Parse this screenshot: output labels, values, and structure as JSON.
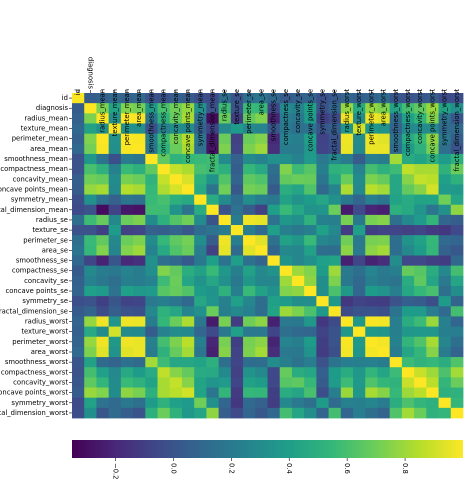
{
  "chart_data": {
    "type": "heatmap",
    "title": "",
    "xlabel": "",
    "ylabel": "",
    "labels": [
      "id",
      "diagnosis",
      "radius_mean",
      "texture_mean",
      "perimeter_mean",
      "area_mean",
      "smoothness_mean",
      "compactness_mean",
      "concavity_mean",
      "concave points_mean",
      "symmetry_mean",
      "fractal_dimension_mean",
      "radius_se",
      "texture_se",
      "perimeter_se",
      "area_se",
      "smoothness_se",
      "compactness_se",
      "concavity_se",
      "concave points_se",
      "symmetry_se",
      "fractal_dimension_se",
      "radius_worst",
      "texture_worst",
      "perimeter_worst",
      "area_worst",
      "smoothness_worst",
      "compactness_worst",
      "concavity_worst",
      "concave points_worst",
      "symmetry_worst",
      "fractal_dimension_worst"
    ],
    "x_tick_labels": [
      "id",
      "diagnosis",
      "radius_mean",
      "texture_mean",
      "perimeter_mean",
      "area_mean",
      "smoothness_mean",
      "compactness_mean",
      "concavity_mean",
      "concave points_mean",
      "symmetry_mean",
      "fractal_dimension_mean",
      "radius_se",
      "texture_se",
      "perimeter_se",
      "area_se",
      "smoothness_se",
      "compactness_se",
      "concavity_se",
      "concave points_se",
      "symmetry_se",
      "fractal_dimension_se",
      "radius_worst",
      "texture_worst",
      "perimeter_worst",
      "area_worst",
      "smoothness_worst",
      "compactness_worst",
      "concavity_worst",
      "concave points_worst",
      "symmetry_worst",
      "fractal_dimension_worst"
    ],
    "x_tick_display": [
      "id",
      "diagnosis",
      "radius_mean",
      "texture_mean",
      "perimeter_mean",
      "area_mean",
      "smoothness_mean",
      "compactness_mean",
      "concavity_mean",
      "concave points_mean",
      "symmetry_mean",
      "fractal_dimension_mean",
      "radius_se",
      "texture_se",
      "perimeter_se",
      "area_se",
      "smoothness_se",
      "compactness_se",
      "concavity_se",
      "concave points_se",
      "symmetry_se",
      "fractal_dimension_se",
      "radius_worst",
      "texture_worst",
      "perimeter_worst",
      "area_worst",
      "smoothness_worst",
      "compactness_worst",
      "concavity_worst",
      "concave points_worst",
      "symmetry_worst",
      "fractal_dimension_worst"
    ],
    "y_tick_labels": [
      "id",
      "diagnosis",
      "radius_mean",
      "texture_mean",
      "perimeter_mean",
      "area_mean",
      "smoothness_mean",
      "compactness_mean",
      "concavity_mean",
      "concave points_mean",
      "symmetry_mean",
      "fractal_dimension_mean",
      "radius_se",
      "texture_se",
      "perimeter_se",
      "area_se",
      "smoothness_se",
      "compactness_se",
      "concavity_se",
      "concave points_se",
      "symmetry_se",
      "fractal_dimension_se",
      "radius_worst",
      "texture_worst",
      "perimeter_worst",
      "area_worst",
      "smoothness_worst",
      "compactness_worst",
      "concavity_worst",
      "concave points_worst",
      "symmetry_worst",
      "fractal_dimension_worst"
    ],
    "y_tick_display": [
      "id",
      "diagnosis",
      "radius_mean",
      "texture_mean",
      "perimeter_mean",
      "area_mean",
      "smoothness_mean",
      "compactness_mean",
      "concavity_mean",
      "concave points_mean",
      "symmetry_mean",
      "fractal_dimension_mean",
      "radius_se",
      "texture_se",
      "perimeter_se",
      "area_se",
      "smoothness_se",
      "compactness_se",
      "concavity_se",
      "concave points_se",
      "symmetry_se",
      "fractal_dimension_se",
      "radius_worst",
      "texture_worst",
      "perimeter_worst",
      "area_worst",
      "smoothness_worst",
      "compactness_worst",
      "concavity_worst",
      "concave points_worst",
      "symmetry_worst",
      "fractal_dimension_worst"
    ],
    "colormap": "viridis",
    "color_range": [
      -0.35,
      1.0
    ],
    "colorbar": {
      "orientation": "horizontal",
      "ticks": [
        -0.2,
        0.0,
        0.2,
        0.4,
        0.6,
        0.8
      ],
      "tick_labels": [
        "−0.2",
        "0.0",
        "0.2",
        "0.4",
        "0.6",
        "0.8"
      ]
    },
    "top_labels_rotated_below": [
      "diagnosis"
    ],
    "values": [
      [
        1.0,
        0.04,
        0.07,
        0.1,
        0.07,
        0.1,
        -0.01,
        0.0,
        0.05,
        0.04,
        -0.02,
        -0.05,
        0.14,
        -0.01,
        0.14,
        0.18,
        0.1,
        0.03,
        0.06,
        0.08,
        -0.02,
        0.03,
        0.08,
        0.06,
        0.08,
        0.11,
        0.01,
        0.0,
        0.02,
        0.04,
        -0.04,
        -0.03
      ],
      [
        0.04,
        1.0,
        0.73,
        0.42,
        0.74,
        0.71,
        0.36,
        0.6,
        0.7,
        0.78,
        0.33,
        -0.01,
        0.57,
        -0.01,
        0.56,
        0.55,
        -0.07,
        0.29,
        0.25,
        0.41,
        -0.01,
        0.08,
        0.78,
        0.46,
        0.78,
        0.73,
        0.42,
        0.59,
        0.66,
        0.79,
        0.42,
        0.32
      ],
      [
        0.07,
        0.73,
        1.0,
        0.32,
        1.0,
        0.99,
        0.17,
        0.51,
        0.68,
        0.82,
        0.15,
        -0.31,
        0.68,
        -0.1,
        0.67,
        0.74,
        -0.22,
        0.21,
        0.19,
        0.38,
        -0.1,
        -0.04,
        0.97,
        0.3,
        0.97,
        0.94,
        0.12,
        0.41,
        0.53,
        0.74,
        0.16,
        0.01
      ],
      [
        0.1,
        0.42,
        0.32,
        1.0,
        0.33,
        0.32,
        -0.02,
        0.24,
        0.3,
        0.29,
        0.07,
        -0.08,
        0.28,
        0.39,
        0.28,
        0.26,
        0.01,
        0.19,
        0.14,
        0.16,
        0.01,
        0.05,
        0.35,
        0.91,
        0.36,
        0.34,
        0.08,
        0.28,
        0.3,
        0.3,
        0.11,
        0.12
      ],
      [
        0.07,
        0.74,
        1.0,
        0.33,
        1.0,
        0.99,
        0.21,
        0.56,
        0.72,
        0.85,
        0.18,
        -0.26,
        0.69,
        -0.09,
        0.69,
        0.74,
        -0.2,
        0.25,
        0.23,
        0.41,
        -0.08,
        -0.01,
        0.97,
        0.3,
        0.97,
        0.94,
        0.15,
        0.46,
        0.56,
        0.77,
        0.19,
        0.05
      ],
      [
        0.1,
        0.71,
        0.99,
        0.32,
        0.99,
        1.0,
        0.18,
        0.5,
        0.69,
        0.82,
        0.15,
        -0.28,
        0.73,
        -0.07,
        0.73,
        0.8,
        -0.17,
        0.21,
        0.21,
        0.37,
        -0.07,
        -0.02,
        0.96,
        0.29,
        0.96,
        0.96,
        0.12,
        0.39,
        0.51,
        0.72,
        0.14,
        0.0
      ],
      [
        -0.01,
        0.36,
        0.17,
        -0.02,
        0.21,
        0.18,
        1.0,
        0.66,
        0.52,
        0.55,
        0.56,
        0.58,
        0.3,
        0.07,
        0.3,
        0.25,
        0.33,
        0.32,
        0.25,
        0.38,
        0.2,
        0.28,
        0.21,
        0.04,
        0.24,
        0.21,
        0.81,
        0.47,
        0.43,
        0.5,
        0.39,
        0.5
      ],
      [
        0.0,
        0.6,
        0.51,
        0.24,
        0.56,
        0.5,
        0.66,
        1.0,
        0.88,
        0.83,
        0.6,
        0.57,
        0.5,
        0.05,
        0.55,
        0.46,
        0.14,
        0.74,
        0.57,
        0.64,
        0.23,
        0.51,
        0.54,
        0.25,
        0.59,
        0.51,
        0.57,
        0.87,
        0.82,
        0.82,
        0.51,
        0.69
      ],
      [
        0.05,
        0.7,
        0.68,
        0.3,
        0.72,
        0.69,
        0.52,
        0.88,
        1.0,
        0.92,
        0.5,
        0.34,
        0.63,
        0.08,
        0.66,
        0.62,
        0.1,
        0.67,
        0.69,
        0.68,
        0.18,
        0.45,
        0.69,
        0.3,
        0.73,
        0.68,
        0.45,
        0.75,
        0.88,
        0.86,
        0.41,
        0.51
      ],
      [
        0.04,
        0.78,
        0.82,
        0.29,
        0.85,
        0.82,
        0.55,
        0.83,
        0.92,
        1.0,
        0.46,
        0.17,
        0.7,
        0.02,
        0.71,
        0.69,
        0.03,
        0.49,
        0.44,
        0.62,
        0.1,
        0.26,
        0.83,
        0.29,
        0.86,
        0.81,
        0.45,
        0.67,
        0.75,
        0.91,
        0.38,
        0.37
      ],
      [
        -0.02,
        0.33,
        0.15,
        0.07,
        0.18,
        0.15,
        0.56,
        0.6,
        0.5,
        0.46,
        1.0,
        0.48,
        0.3,
        0.13,
        0.31,
        0.22,
        0.19,
        0.42,
        0.34,
        0.39,
        0.45,
        0.33,
        0.19,
        0.09,
        0.22,
        0.18,
        0.43,
        0.47,
        0.43,
        0.43,
        0.7,
        0.44
      ],
      [
        -0.05,
        -0.01,
        -0.31,
        -0.08,
        -0.26,
        -0.28,
        0.58,
        0.57,
        0.34,
        0.17,
        0.48,
        1.0,
        0.0,
        0.16,
        0.04,
        -0.09,
        0.4,
        0.56,
        0.45,
        0.34,
        0.35,
        0.69,
        -0.25,
        -0.05,
        -0.21,
        -0.23,
        0.5,
        0.46,
        0.35,
        0.18,
        0.33,
        0.77
      ],
      [
        0.14,
        0.57,
        0.68,
        0.28,
        0.69,
        0.73,
        0.3,
        0.5,
        0.63,
        0.7,
        0.3,
        0.0,
        1.0,
        0.21,
        0.97,
        0.95,
        0.16,
        0.36,
        0.33,
        0.51,
        0.24,
        0.23,
        0.72,
        0.19,
        0.72,
        0.75,
        0.14,
        0.29,
        0.38,
        0.53,
        0.09,
        0.05
      ],
      [
        -0.01,
        -0.01,
        -0.1,
        0.39,
        -0.09,
        -0.07,
        0.07,
        0.05,
        0.08,
        0.02,
        0.13,
        0.16,
        0.21,
        1.0,
        0.22,
        0.11,
        0.4,
        0.23,
        0.19,
        0.23,
        0.41,
        0.28,
        -0.11,
        0.41,
        -0.1,
        -0.08,
        -0.07,
        -0.09,
        -0.07,
        -0.12,
        -0.13,
        -0.05
      ],
      [
        0.14,
        0.56,
        0.67,
        0.28,
        0.69,
        0.73,
        0.3,
        0.55,
        0.66,
        0.71,
        0.31,
        0.04,
        0.97,
        0.22,
        1.0,
        0.94,
        0.15,
        0.42,
        0.36,
        0.56,
        0.27,
        0.24,
        0.7,
        0.2,
        0.72,
        0.73,
        0.13,
        0.34,
        0.42,
        0.55,
        0.11,
        0.09
      ],
      [
        0.18,
        0.55,
        0.74,
        0.26,
        0.74,
        0.8,
        0.25,
        0.46,
        0.62,
        0.69,
        0.22,
        -0.09,
        0.95,
        0.11,
        0.94,
        1.0,
        0.08,
        0.28,
        0.27,
        0.42,
        0.13,
        0.13,
        0.76,
        0.2,
        0.76,
        0.81,
        0.13,
        0.28,
        0.39,
        0.54,
        0.07,
        0.02
      ],
      [
        0.1,
        -0.07,
        -0.22,
        0.01,
        -0.2,
        -0.17,
        0.33,
        0.14,
        0.1,
        0.03,
        0.19,
        0.4,
        0.16,
        0.4,
        0.15,
        0.08,
        1.0,
        0.34,
        0.27,
        0.33,
        0.41,
        0.43,
        -0.23,
        -0.07,
        -0.22,
        -0.18,
        0.31,
        -0.06,
        -0.06,
        -0.1,
        -0.11,
        0.1
      ],
      [
        0.03,
        0.29,
        0.21,
        0.19,
        0.25,
        0.21,
        0.32,
        0.74,
        0.67,
        0.49,
        0.42,
        0.56,
        0.36,
        0.23,
        0.42,
        0.28,
        0.34,
        1.0,
        0.8,
        0.74,
        0.39,
        0.8,
        0.2,
        0.14,
        0.26,
        0.2,
        0.23,
        0.68,
        0.64,
        0.48,
        0.28,
        0.59
      ],
      [
        0.06,
        0.25,
        0.19,
        0.14,
        0.23,
        0.21,
        0.25,
        0.57,
        0.69,
        0.44,
        0.34,
        0.45,
        0.33,
        0.19,
        0.36,
        0.27,
        0.27,
        0.8,
        1.0,
        0.77,
        0.31,
        0.73,
        0.19,
        0.1,
        0.23,
        0.19,
        0.17,
        0.48,
        0.66,
        0.44,
        0.2,
        0.44
      ],
      [
        0.08,
        0.41,
        0.38,
        0.16,
        0.41,
        0.37,
        0.38,
        0.64,
        0.68,
        0.62,
        0.39,
        0.34,
        0.51,
        0.23,
        0.56,
        0.42,
        0.33,
        0.74,
        0.77,
        1.0,
        0.31,
        0.61,
        0.36,
        0.09,
        0.39,
        0.34,
        0.22,
        0.45,
        0.55,
        0.6,
        0.14,
        0.31
      ],
      [
        -0.02,
        -0.01,
        -0.1,
        0.01,
        -0.08,
        -0.07,
        0.2,
        0.23,
        0.18,
        0.1,
        0.45,
        0.35,
        0.24,
        0.41,
        0.27,
        0.13,
        0.41,
        0.39,
        0.31,
        0.31,
        1.0,
        0.37,
        -0.13,
        -0.08,
        -0.1,
        -0.11,
        -0.01,
        0.06,
        0.04,
        -0.03,
        0.39,
        0.08
      ],
      [
        0.03,
        0.08,
        -0.04,
        0.05,
        -0.01,
        -0.02,
        0.28,
        0.51,
        0.45,
        0.26,
        0.33,
        0.69,
        0.23,
        0.28,
        0.24,
        0.13,
        0.43,
        0.8,
        0.73,
        0.61,
        0.37,
        1.0,
        -0.04,
        -0.0,
        -0.0,
        -0.02,
        0.17,
        0.39,
        0.38,
        0.22,
        0.11,
        0.59
      ],
      [
        0.08,
        0.78,
        0.97,
        0.35,
        0.97,
        0.96,
        0.21,
        0.54,
        0.69,
        0.83,
        0.19,
        -0.25,
        0.72,
        -0.11,
        0.7,
        0.76,
        -0.23,
        0.2,
        0.19,
        0.36,
        -0.13,
        -0.04,
        1.0,
        0.36,
        0.99,
        0.98,
        0.22,
        0.48,
        0.57,
        0.79,
        0.24,
        0.09
      ],
      [
        0.06,
        0.46,
        0.3,
        0.91,
        0.3,
        0.29,
        0.04,
        0.25,
        0.3,
        0.29,
        0.09,
        -0.05,
        0.19,
        0.41,
        0.2,
        0.2,
        -0.07,
        0.14,
        0.1,
        0.09,
        -0.08,
        -0.0,
        0.36,
        1.0,
        0.37,
        0.35,
        0.23,
        0.36,
        0.37,
        0.36,
        0.23,
        0.22
      ],
      [
        0.08,
        0.78,
        0.97,
        0.36,
        0.97,
        0.96,
        0.24,
        0.59,
        0.73,
        0.86,
        0.22,
        -0.21,
        0.72,
        -0.1,
        0.72,
        0.76,
        -0.22,
        0.26,
        0.23,
        0.39,
        -0.1,
        -0.0,
        0.99,
        0.37,
        1.0,
        0.98,
        0.24,
        0.53,
        0.62,
        0.82,
        0.27,
        0.14
      ],
      [
        0.11,
        0.73,
        0.94,
        0.34,
        0.94,
        0.96,
        0.21,
        0.51,
        0.68,
        0.81,
        0.18,
        -0.23,
        0.75,
        -0.08,
        0.73,
        0.81,
        -0.18,
        0.2,
        0.19,
        0.34,
        -0.11,
        -0.02,
        0.98,
        0.35,
        0.98,
        1.0,
        0.21,
        0.44,
        0.54,
        0.75,
        0.21,
        0.08
      ],
      [
        0.01,
        0.42,
        0.12,
        0.08,
        0.15,
        0.12,
        0.81,
        0.57,
        0.45,
        0.45,
        0.43,
        0.5,
        0.14,
        -0.07,
        0.13,
        0.13,
        0.31,
        0.23,
        0.17,
        0.22,
        -0.01,
        0.17,
        0.22,
        0.23,
        0.24,
        0.21,
        1.0,
        0.57,
        0.52,
        0.55,
        0.49,
        0.62
      ],
      [
        0.0,
        0.59,
        0.41,
        0.28,
        0.46,
        0.39,
        0.47,
        0.87,
        0.75,
        0.67,
        0.47,
        0.46,
        0.29,
        -0.09,
        0.34,
        0.28,
        -0.06,
        0.68,
        0.48,
        0.45,
        0.06,
        0.39,
        0.48,
        0.36,
        0.53,
        0.44,
        0.57,
        1.0,
        0.89,
        0.8,
        0.61,
        0.81
      ],
      [
        0.02,
        0.66,
        0.53,
        0.3,
        0.56,
        0.51,
        0.43,
        0.82,
        0.88,
        0.75,
        0.43,
        0.35,
        0.38,
        -0.07,
        0.42,
        0.39,
        -0.06,
        0.64,
        0.66,
        0.55,
        0.04,
        0.38,
        0.57,
        0.37,
        0.62,
        0.54,
        0.52,
        0.89,
        1.0,
        0.86,
        0.53,
        0.69
      ],
      [
        0.04,
        0.79,
        0.74,
        0.3,
        0.77,
        0.72,
        0.5,
        0.82,
        0.86,
        0.91,
        0.43,
        0.18,
        0.53,
        -0.12,
        0.55,
        0.54,
        -0.1,
        0.48,
        0.44,
        0.6,
        -0.03,
        0.22,
        0.79,
        0.36,
        0.82,
        0.75,
        0.55,
        0.8,
        0.86,
        1.0,
        0.5,
        0.51
      ],
      [
        -0.04,
        0.42,
        0.16,
        0.11,
        0.19,
        0.14,
        0.39,
        0.51,
        0.41,
        0.38,
        0.7,
        0.33,
        0.09,
        -0.13,
        0.11,
        0.07,
        -0.11,
        0.28,
        0.2,
        0.14,
        0.39,
        0.11,
        0.24,
        0.23,
        0.27,
        0.21,
        0.49,
        0.61,
        0.53,
        0.5,
        1.0,
        0.54
      ],
      [
        -0.03,
        0.32,
        0.01,
        0.12,
        0.05,
        0.0,
        0.5,
        0.69,
        0.51,
        0.37,
        0.44,
        0.77,
        0.05,
        -0.05,
        0.09,
        0.02,
        0.1,
        0.59,
        0.44,
        0.31,
        0.08,
        0.59,
        0.09,
        0.22,
        0.14,
        0.08,
        0.62,
        0.81,
        0.69,
        0.51,
        0.54,
        1.0
      ]
    ]
  },
  "colors": {
    "viridis_stops": [
      "#440154",
      "#482878",
      "#3e4a89",
      "#31688e",
      "#26828e",
      "#1f9e89",
      "#35b779",
      "#6ece58",
      "#b5de2b",
      "#fde725"
    ]
  }
}
